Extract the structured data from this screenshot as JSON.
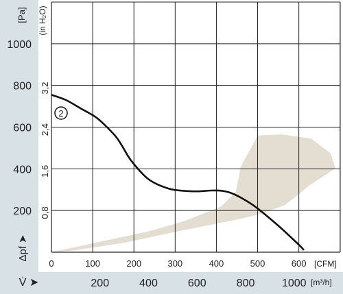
{
  "colors": {
    "panel": "#d7e1e6",
    "grid": "#222222",
    "curve": "#111111",
    "operating_area": "#e3ddd2"
  },
  "chart_data": {
    "type": "line",
    "title": "",
    "units": {
      "y_pa": "[Pa]",
      "y_inh2o": "(in H₂O)",
      "x_cfm": "[CFM]",
      "x_m3h": "[m³/h]"
    },
    "axis_symbols": {
      "y": "Δpf ➤",
      "x": "V̇ ➤"
    },
    "y_pa_ticks": [
      "1000",
      "800",
      "600",
      "400",
      "200"
    ],
    "y_inh2o_ticks": [
      "3,2",
      "2,4",
      "1,6",
      "0,8"
    ],
    "x_cfm_ticks": [
      "0",
      "100",
      "200",
      "300",
      "400",
      "500",
      "600"
    ],
    "x_m3h_ticks": [
      "200",
      "400",
      "600",
      "800",
      "1000"
    ],
    "xlim_m3h": [
      0,
      1190
    ],
    "ylim_pa": [
      0,
      1200
    ],
    "grid": true,
    "series": [
      {
        "name": "2",
        "x": [
          0,
          60,
          120,
          180,
          220,
          265,
          290,
          330,
          400,
          480,
          540,
          600,
          660,
          700,
          740,
          780,
          840,
          930,
          1020,
          1040
        ],
        "y": [
          755,
          730,
          690,
          650,
          610,
          555,
          512,
          437,
          350,
          306,
          295,
          292,
          296,
          295,
          284,
          262,
          218,
          132,
          35,
          10
        ]
      }
    ],
    "operating_area": {
      "x": [
        0,
        200,
        400,
        550,
        700,
        760,
        780,
        850,
        950,
        1070,
        1150,
        1170,
        1060,
        1000,
        960,
        900,
        850,
        780,
        650,
        500,
        300,
        100
      ],
      "y": [
        0,
        50,
        100,
        150,
        220,
        290,
        410,
        560,
        565,
        545,
        475,
        402,
        318,
        260,
        225,
        200,
        180,
        160,
        130,
        95,
        45,
        10
      ]
    }
  }
}
